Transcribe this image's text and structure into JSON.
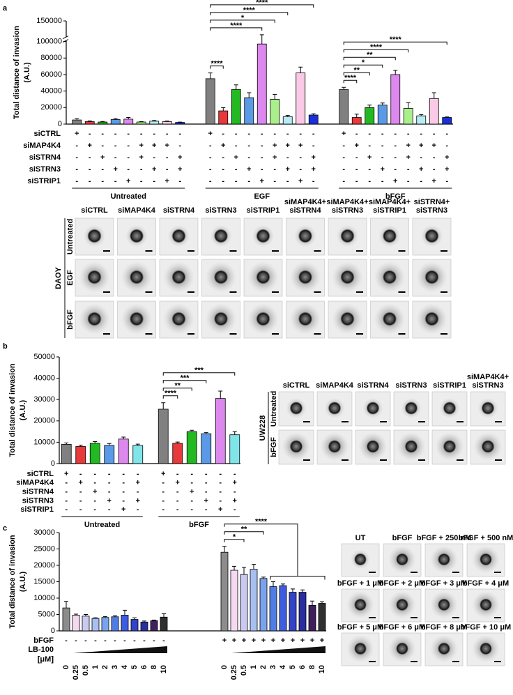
{
  "figure": {
    "panels": [
      "a",
      "b",
      "c"
    ]
  },
  "chart_data": [
    {
      "type": "bar",
      "ylabel": [
        "Total distance of invasion",
        "(A.U.)"
      ],
      "ylim": [
        0,
        150000
      ],
      "yticks": [
        0,
        20000,
        40000,
        60000,
        80000,
        100000,
        150000
      ],
      "broken_axis": true,
      "colors": [
        "#808080",
        "#e8393b",
        "#22b922",
        "#5b9ae6",
        "#dd88ee",
        "#a9f08c",
        "#b8ecf5",
        "#f9c9e6",
        "#1a2fd9"
      ],
      "rows": [
        {
          "name": "siCTRL",
          "color": "#666666"
        },
        {
          "name": "siMAP4K4",
          "color": "#e8393b"
        },
        {
          "name": "siSTRN4",
          "color": "#22b922"
        },
        {
          "name": "siSTRN3",
          "color": "#5b9ae6"
        },
        {
          "name": "siSTRIP1",
          "color": "#dd88ee"
        }
      ],
      "groups": [
        {
          "name": "Untreated",
          "values": [
            5000,
            3000,
            2500,
            5500,
            6000,
            2500,
            3500,
            3000,
            2000
          ],
          "errors": [
            1500,
            800,
            700,
            1000,
            2000,
            500,
            800,
            700,
            400
          ],
          "signs": [
            [
              "+",
              "-",
              "-",
              "-",
              "-",
              "-",
              "-",
              "-",
              "-"
            ],
            [
              "-",
              "+",
              "-",
              "-",
              "-",
              "+",
              "+",
              "+",
              "-"
            ],
            [
              "-",
              "-",
              "+",
              "-",
              "-",
              "+",
              "-",
              "-",
              "+"
            ],
            [
              "-",
              "-",
              "-",
              "+",
              "-",
              "-",
              "+",
              "-",
              "+"
            ],
            [
              "-",
              "-",
              "-",
              "-",
              "+",
              "-",
              "-",
              "+",
              "-"
            ]
          ]
        },
        {
          "name": "EGF",
          "values": [
            55000,
            16000,
            42000,
            32000,
            97000,
            30000,
            9000,
            62000,
            11000
          ],
          "errors": [
            7000,
            4000,
            5500,
            6000,
            7000,
            6000,
            1500,
            7000,
            1500
          ],
          "signs": [
            [
              "+",
              "-",
              "-",
              "-",
              "-",
              "-",
              "-",
              "-",
              "-"
            ],
            [
              "-",
              "+",
              "-",
              "-",
              "-",
              "+",
              "+",
              "+",
              "-"
            ],
            [
              "-",
              "-",
              "+",
              "-",
              "-",
              "+",
              "-",
              "-",
              "+"
            ],
            [
              "-",
              "-",
              "-",
              "+",
              "-",
              "-",
              "+",
              "-",
              "+"
            ],
            [
              "-",
              "-",
              "-",
              "-",
              "+",
              "-",
              "-",
              "+",
              "-"
            ]
          ]
        },
        {
          "name": "bFGF",
          "values": [
            42000,
            8000,
            20000,
            23000,
            60000,
            19000,
            10000,
            31000,
            8000
          ],
          "errors": [
            2500,
            4000,
            3000,
            2500,
            5000,
            7000,
            1500,
            7000,
            700
          ],
          "signs": [
            [
              "+",
              "-",
              "-",
              "-",
              "-",
              "-",
              "-",
              "-",
              "-"
            ],
            [
              "-",
              "+",
              "-",
              "-",
              "-",
              "+",
              "+",
              "+",
              "-"
            ],
            [
              "-",
              "-",
              "+",
              "-",
              "-",
              "+",
              "-",
              "-",
              "+"
            ],
            [
              "-",
              "-",
              "-",
              "+",
              "-",
              "-",
              "+",
              "-",
              "+"
            ],
            [
              "-",
              "-",
              "-",
              "-",
              "+",
              "-",
              "-",
              "+",
              "-"
            ]
          ]
        }
      ],
      "comparisons": [
        {
          "group": 1,
          "from": 0,
          "to": 1,
          "label": "****"
        },
        {
          "group": 1,
          "from": 0,
          "to": 4,
          "label": "****"
        },
        {
          "group": 1,
          "from": 0,
          "to": 5,
          "label": "*"
        },
        {
          "group": 1,
          "from": 0,
          "to": 6,
          "label": "****"
        },
        {
          "group": 1,
          "from": 0,
          "to": 8,
          "label": "****"
        },
        {
          "group": 2,
          "from": 0,
          "to": 1,
          "label": "****"
        },
        {
          "group": 2,
          "from": 0,
          "to": 2,
          "label": "**"
        },
        {
          "group": 2,
          "from": 0,
          "to": 3,
          "label": "*"
        },
        {
          "group": 2,
          "from": 0,
          "to": 4,
          "label": "**"
        },
        {
          "group": 2,
          "from": 0,
          "to": 5,
          "label": "****"
        },
        {
          "group": 2,
          "from": 0,
          "to": 8,
          "label": "****"
        }
      ]
    },
    {
      "type": "bar",
      "ylabel": [
        "Total distance of invasion",
        "(A.U.)"
      ],
      "ylim": [
        0,
        50000
      ],
      "yticks": [
        0,
        10000,
        20000,
        30000,
        40000,
        50000
      ],
      "colors": [
        "#808080",
        "#e8393b",
        "#22b922",
        "#5b9ae6",
        "#dd88ee",
        "#7fe5e8"
      ],
      "rows": [
        {
          "name": "siCTRL",
          "color": "#666666"
        },
        {
          "name": "siMAP4K4",
          "color": "#e8393b"
        },
        {
          "name": "siSTRN4",
          "color": "#22b922"
        },
        {
          "name": "siSTRN3",
          "color": "#5b9ae6"
        },
        {
          "name": "siSTRIP1",
          "color": "#dd88ee"
        }
      ],
      "groups": [
        {
          "name": "Untreated",
          "values": [
            9000,
            8000,
            9500,
            8500,
            11500,
            8500
          ],
          "errors": [
            700,
            600,
            800,
            900,
            900,
            600
          ],
          "signs": [
            [
              "+",
              "-",
              "-",
              "-",
              "-",
              "-"
            ],
            [
              "-",
              "+",
              "-",
              "-",
              "-",
              "+"
            ],
            [
              "-",
              "-",
              "+",
              "-",
              "-",
              "-"
            ],
            [
              "-",
              "-",
              "-",
              "+",
              "-",
              "+"
            ],
            [
              "-",
              "-",
              "-",
              "-",
              "+",
              "-"
            ]
          ]
        },
        {
          "name": "bFGF",
          "values": [
            25500,
            9500,
            15000,
            14000,
            30500,
            13500
          ],
          "errors": [
            3000,
            600,
            600,
            500,
            3500,
            1500
          ],
          "signs": [
            [
              "+",
              "-",
              "-",
              "-",
              "-",
              "-"
            ],
            [
              "-",
              "+",
              "-",
              "-",
              "-",
              "+"
            ],
            [
              "-",
              "-",
              "+",
              "-",
              "-",
              "-"
            ],
            [
              "-",
              "-",
              "-",
              "+",
              "-",
              "+"
            ],
            [
              "-",
              "-",
              "-",
              "-",
              "+",
              "-"
            ]
          ]
        }
      ],
      "comparisons": [
        {
          "group": 1,
          "from": 0,
          "to": 1,
          "label": "****"
        },
        {
          "group": 1,
          "from": 0,
          "to": 2,
          "label": "**"
        },
        {
          "group": 1,
          "from": 0,
          "to": 3,
          "label": "***"
        },
        {
          "group": 1,
          "from": 0,
          "to": 5,
          "label": "***"
        }
      ]
    },
    {
      "type": "bar",
      "ylabel": [
        "Total distance of invasion",
        "(A.U.)"
      ],
      "ylim": [
        0,
        30000
      ],
      "yticks": [
        0,
        5000,
        10000,
        15000,
        20000,
        25000,
        30000
      ],
      "colors": [
        "#8c8c8c",
        "#f5d9f0",
        "#c9c9f2",
        "#a8bff2",
        "#7aa3ee",
        "#4f7de4",
        "#3d5ce0",
        "#3344c8",
        "#2a2d9f",
        "#3f1f5c",
        "#2f2f2f"
      ],
      "rows": [
        {
          "name": "bFGF",
          "color": "#000000"
        }
      ],
      "wedge_label": "LB-100",
      "unit_label": "[μM]",
      "groups": [
        {
          "categories": [
            "0",
            "0.25",
            "0.5",
            "1",
            "2",
            "3",
            "4",
            "5",
            "6",
            "8",
            "10"
          ],
          "values": [
            7000,
            4800,
            4500,
            3800,
            4100,
            4300,
            4800,
            3500,
            2700,
            3100,
            4200
          ],
          "errors": [
            2000,
            300,
            500,
            200,
            300,
            300,
            1500,
            500,
            300,
            200,
            1000
          ],
          "signs": [
            [
              "-",
              "-",
              "-",
              "-",
              "-",
              "-",
              "-",
              "-",
              "-",
              "-",
              "-"
            ]
          ]
        },
        {
          "categories": [
            "0",
            "0.25",
            "0.5",
            "1",
            "2",
            "3",
            "4",
            "5",
            "6",
            "8",
            "10"
          ],
          "values": [
            24000,
            18500,
            17200,
            18800,
            16000,
            13500,
            13800,
            11800,
            11800,
            7800,
            8400
          ],
          "errors": [
            1800,
            1200,
            2200,
            1500,
            400,
            1500,
            500,
            1000,
            700,
            1300,
            500
          ],
          "signs": [
            [
              "+",
              "+",
              "+",
              "+",
              "+",
              "+",
              "+",
              "+",
              "+",
              "+",
              "+"
            ]
          ]
        }
      ],
      "comparisons": [
        {
          "group": 1,
          "from": 0,
          "to": 2,
          "label": "*"
        },
        {
          "group": 1,
          "from": 0,
          "to": 4,
          "label": "**"
        },
        {
          "group": 1,
          "from": 0,
          "to": 5,
          "to_end": 10,
          "label": "****"
        }
      ]
    }
  ],
  "image_grids": [
    {
      "cell_line": "DAOY",
      "rows": [
        "Untreated",
        "EGF",
        "bFGF"
      ],
      "columns": [
        "siCTRL",
        "siMAP4K4",
        "siSTRN4",
        "siSTRN3",
        "siSTRIP1",
        [
          "siMAP4K4+",
          "siSTRN4"
        ],
        [
          "siMAP4K4+",
          "siSTRN3"
        ],
        [
          "siMAP4K4+",
          "siSTRIP1"
        ],
        [
          "siSTRN4+",
          "siSTRN3"
        ]
      ]
    },
    {
      "cell_line": "UW228",
      "rows": [
        "Untreated",
        "bFGF"
      ],
      "columns": [
        "siCTRL",
        "siMAP4K4",
        "siSTRN4",
        "siSTRN3",
        "siSTRIP1",
        [
          "siMAP4K4+",
          "siSTRN3"
        ]
      ]
    },
    {
      "labels": [
        [
          "UT",
          "bFGF",
          "bFGF + 250 nM",
          "bFGF + 500 nM"
        ],
        [
          "bFGF + 1 μM",
          "bFGF + 2 μM",
          "bFGF + 3 μM",
          "bFGF + 4 μM"
        ],
        [
          "bFGF + 5 μM",
          "bFGF + 6 μM",
          "bFGF + 8 μM",
          "bFGF + 10 μM"
        ]
      ]
    }
  ]
}
